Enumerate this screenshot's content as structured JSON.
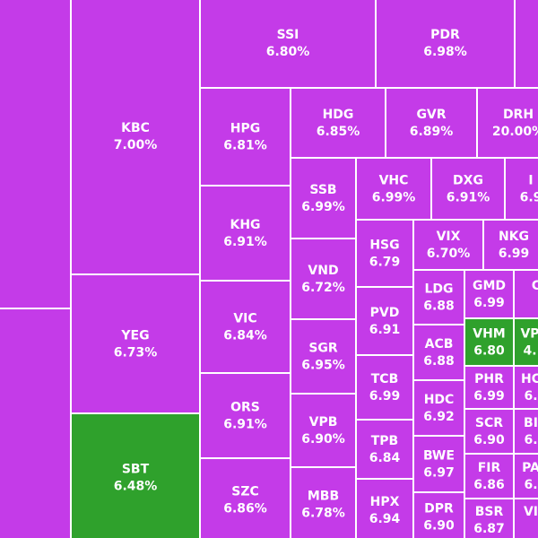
{
  "tiles": [
    {
      "ticker": "KBC",
      "change": "7.00%",
      "color": "#c43be8"
    },
    {
      "ticker": "YEG",
      "change": "6.73%",
      "color": "#c43be8"
    },
    {
      "ticker": "SBT",
      "change": "6.48%",
      "color": "#2fa12c"
    },
    {
      "ticker": "SSI",
      "change": "6.80%",
      "color": "#c43be8"
    },
    {
      "ticker": "PDR",
      "change": "6.98%",
      "color": "#c43be8"
    },
    {
      "ticker": "HPG",
      "change": "6.81%",
      "color": "#c43be8"
    },
    {
      "ticker": "KHG",
      "change": "6.91%",
      "color": "#c43be8"
    },
    {
      "ticker": "VIC",
      "change": "6.84%",
      "color": "#c43be8"
    },
    {
      "ticker": "ORS",
      "change": "6.91%",
      "color": "#c43be8"
    },
    {
      "ticker": "SZC",
      "change": "6.86%",
      "color": "#c43be8"
    },
    {
      "ticker": "HDG",
      "change": "6.85%",
      "color": "#c43be8"
    },
    {
      "ticker": "GVR",
      "change": "6.89%",
      "color": "#c43be8"
    },
    {
      "ticker": "DRH",
      "change": "20.00%",
      "color": "#c43be8"
    },
    {
      "ticker": "SSB",
      "change": "6.99%",
      "color": "#c43be8"
    },
    {
      "ticker": "VND",
      "change": "6.72%",
      "color": "#c43be8"
    },
    {
      "ticker": "SGR",
      "change": "6.95%",
      "color": "#c43be8"
    },
    {
      "ticker": "VPB",
      "change": "6.90%",
      "color": "#c43be8"
    },
    {
      "ticker": "MBB",
      "change": "6.78%",
      "color": "#c43be8"
    },
    {
      "ticker": "VHC",
      "change": "6.99%",
      "color": "#c43be8"
    },
    {
      "ticker": "DXG",
      "change": "6.91%",
      "color": "#c43be8"
    },
    {
      "ticker": "I",
      "change": "6.9",
      "color": "#c43be8"
    },
    {
      "ticker": "HSG",
      "change": "6.79",
      "color": "#c43be8"
    },
    {
      "ticker": "PVD",
      "change": "6.91",
      "color": "#c43be8"
    },
    {
      "ticker": "TCB",
      "change": "6.99",
      "color": "#c43be8"
    },
    {
      "ticker": "TPB",
      "change": "6.84",
      "color": "#c43be8"
    },
    {
      "ticker": "HPX",
      "change": "6.94",
      "color": "#c43be8"
    },
    {
      "ticker": "VIX",
      "change": "6.70%",
      "color": "#c43be8"
    },
    {
      "ticker": "NKG",
      "change": "6.99",
      "color": "#c43be8"
    },
    {
      "ticker": "LDG",
      "change": "6.88",
      "color": "#c43be8"
    },
    {
      "ticker": "ACB",
      "change": "6.88",
      "color": "#c43be8"
    },
    {
      "ticker": "HDC",
      "change": "6.92",
      "color": "#c43be8"
    },
    {
      "ticker": "BWE",
      "change": "6.97",
      "color": "#c43be8"
    },
    {
      "ticker": "DPR",
      "change": "6.90",
      "color": "#c43be8"
    },
    {
      "ticker": "GMD",
      "change": "6.99",
      "color": "#c43be8"
    },
    {
      "ticker": "VHM",
      "change": "6.80",
      "color": "#2fa12c"
    },
    {
      "ticker": "PHR",
      "change": "6.99",
      "color": "#c43be8"
    },
    {
      "ticker": "SCR",
      "change": "6.90",
      "color": "#c43be8"
    },
    {
      "ticker": "FIR",
      "change": "6.86",
      "color": "#c43be8"
    },
    {
      "ticker": "BSR",
      "change": "6.87",
      "color": "#c43be8"
    },
    {
      "ticker": "C",
      "change": "",
      "color": "#c43be8"
    },
    {
      "ticker": "VP",
      "change": "4.",
      "color": "#2fa12c"
    },
    {
      "ticker": "HC",
      "change": "6.",
      "color": "#c43be8"
    },
    {
      "ticker": "BI",
      "change": "6.",
      "color": "#c43be8"
    },
    {
      "ticker": "PA",
      "change": "6.",
      "color": "#c43be8"
    },
    {
      "ticker": "VI",
      "change": "",
      "color": "#c43be8"
    }
  ]
}
